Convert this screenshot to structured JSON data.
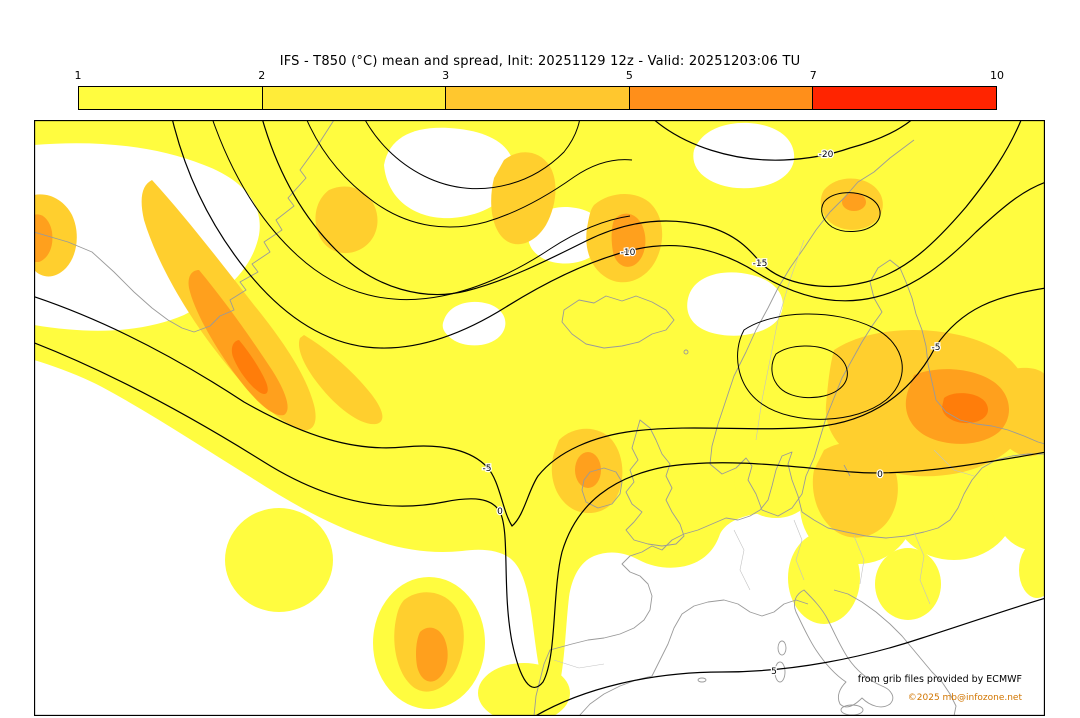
{
  "title": "IFS - T850 (°C) mean and spread, Init: 20251129 12z - Valid: 20251203:06 TU",
  "colorbar": {
    "ticks": [
      "1",
      "2",
      "3",
      "5",
      "7",
      "10"
    ],
    "segment_colors": [
      "#fffc3f",
      "#ffec39",
      "#ffc72e",
      "#ff8f1a",
      "#ff2400"
    ]
  },
  "map": {
    "colors": {
      "spread_1": "#fffc3f",
      "spread_2": "#ffcf2e",
      "spread_3": "#ffa01d",
      "spread_4": "#ff7d0a",
      "coast": "#9a9a9a",
      "border": "#c2c2c2",
      "contour": "#000000"
    },
    "contour_labels": [
      {
        "value": "-20"
      },
      {
        "value": "-15"
      },
      {
        "value": "-10"
      },
      {
        "value": "-5"
      },
      {
        "value": "-5"
      },
      {
        "value": "0"
      },
      {
        "value": "0"
      },
      {
        "value": "5"
      }
    ],
    "credits_line1": "from grib files provided by ECMWF",
    "credits_line2": "©2025 mb@infozone.net"
  }
}
